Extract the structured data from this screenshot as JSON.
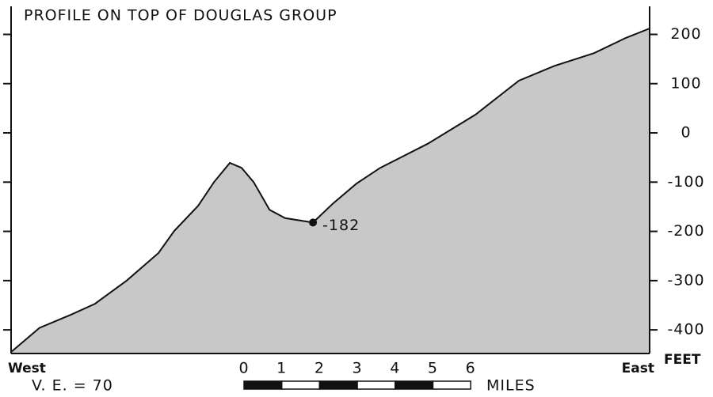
{
  "chart_data": {
    "type": "area",
    "title": "PROFILE ON TOP OF DOUGLAS GROUP",
    "x": [
      0,
      0.75,
      1.59,
      2.22,
      3.06,
      3.9,
      4.32,
      4.95,
      5.37,
      5.79,
      6.1,
      6.42,
      6.84,
      7.25,
      7.99,
      8.51,
      9.14,
      9.77,
      11.03,
      12.29,
      13.44,
      14.38,
      15.43,
      16.27,
      16.9
    ],
    "values": [
      -445,
      -396,
      -369,
      -347,
      -300,
      -244,
      -199,
      -148,
      -100,
      -61,
      -71,
      -100,
      -156,
      -173,
      -182,
      -144,
      -103,
      -71,
      -22,
      37,
      106,
      136,
      162,
      193,
      212
    ],
    "marked_point": 14,
    "color": "#c8c8c8",
    "xlim": [
      0,
      16.9
    ],
    "ylim": [
      -448,
      257
    ],
    "yticks": [
      200,
      100,
      0,
      -100,
      -200,
      -300,
      -400
    ],
    "y_axis_label": "FEET",
    "left_label": "West",
    "right_label": "East",
    "note": "V. E. = 70",
    "scale_ticks": [
      0,
      1,
      2,
      3,
      4,
      5,
      6
    ],
    "scale_label": "MILES"
  }
}
